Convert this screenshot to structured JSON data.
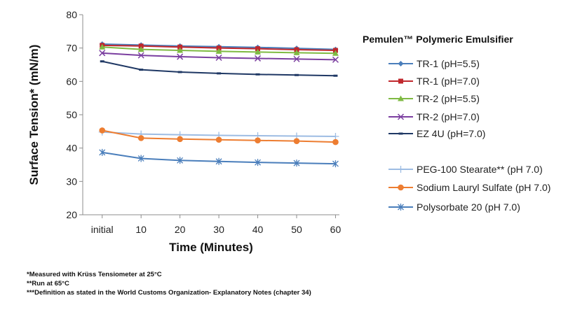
{
  "chart_data": {
    "type": "line",
    "xlabel": "Time (Minutes)",
    "ylabel": "Surface Tension* (mN/m)",
    "categories": [
      "initial",
      "10",
      "20",
      "30",
      "40",
      "50",
      "60"
    ],
    "ylim": [
      20,
      80
    ],
    "yticks": [
      20,
      30,
      40,
      50,
      60,
      70,
      80
    ],
    "grid": false,
    "legend_placement": "right",
    "legend_title": "Pemulen™ Polymeric Emulsifier",
    "series": [
      {
        "name": "TR-1 (pH=5.5)",
        "color": "#4a7ebb",
        "marker": "diamond",
        "values": [
          71.2,
          70.9,
          70.6,
          70.4,
          70.2,
          69.9,
          69.6
        ]
      },
      {
        "name": "TR-1 (pH=7.0)",
        "color": "#c0282d",
        "marker": "square",
        "values": [
          70.8,
          70.6,
          70.3,
          70.0,
          69.8,
          69.5,
          69.3
        ]
      },
      {
        "name": "TR-2 (pH=5.5)",
        "color": "#7fba43",
        "marker": "triangle",
        "values": [
          70.3,
          69.6,
          69.3,
          69.0,
          68.8,
          68.6,
          68.4
        ]
      },
      {
        "name": "TR-2 (pH=7.0)",
        "color": "#7b3fa0",
        "marker": "x",
        "values": [
          68.5,
          67.8,
          67.4,
          67.1,
          66.9,
          66.7,
          66.5
        ]
      },
      {
        "name": "EZ 4U (pH=7.0)",
        "color": "#1f3864",
        "marker": "dash",
        "values": [
          66.0,
          63.5,
          62.8,
          62.4,
          62.1,
          61.9,
          61.7
        ]
      },
      {
        "name": "PEG-100 Stearate** (pH 7.0)",
        "color": "#9dbce3",
        "marker": "plus",
        "values": [
          44.8,
          44.2,
          44.0,
          43.8,
          43.7,
          43.6,
          43.5
        ]
      },
      {
        "name": "Sodium Lauryl Sulfate (pH 7.0)",
        "color": "#ed7d31",
        "marker": "circle",
        "values": [
          45.3,
          43.0,
          42.7,
          42.5,
          42.3,
          42.1,
          41.8
        ]
      },
      {
        "name": "Polysorbate 20 (pH 7.0)",
        "color": "#4a7ebb",
        "marker": "asterisk",
        "values": [
          38.7,
          36.9,
          36.3,
          36.0,
          35.7,
          35.5,
          35.3
        ]
      }
    ]
  },
  "notes": [
    "*Measured with Krüss Tensiometer at 25°C",
    "**Run at 65°C",
    "***Definition as stated in the World Customs Organization- Explanatory Notes (chapter 34)"
  ]
}
